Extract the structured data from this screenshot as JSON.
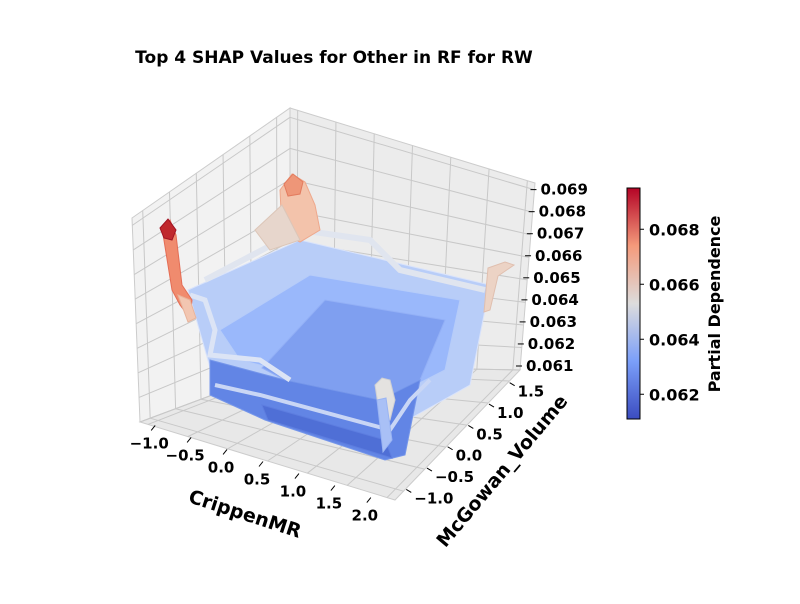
{
  "chart_data": {
    "type": "surface3d",
    "title": "Top 4 SHAP Values for Other in RF for RW",
    "xlabel": "CrippenMR",
    "ylabel": "McGowan_Volume",
    "zlabel": "",
    "x_ticks": [
      "−1.0",
      "−0.5",
      "0.0",
      "0.5",
      "1.0",
      "1.5",
      "2.0"
    ],
    "y_ticks": [
      "−1.0",
      "−0.5",
      "0.0",
      "0.5",
      "1.0",
      "1.5"
    ],
    "z_ticks": [
      "0.061",
      "0.062",
      "0.063",
      "0.064",
      "0.065",
      "0.066",
      "0.067",
      "0.068",
      "0.069"
    ],
    "xlim": [
      -1.1,
      2.1
    ],
    "ylim": [
      -1.2,
      1.75
    ],
    "zlim": [
      0.061,
      0.0693
    ],
    "colormap": "coolwarm",
    "colorbar": {
      "label": "Partial Dependence",
      "ticks": [
        "0.062",
        "0.064",
        "0.066",
        "0.068"
      ],
      "range": [
        0.0611,
        0.0695
      ]
    },
    "surface_summary": {
      "grid_x": [
        -1.0,
        -0.5,
        0.0,
        0.5,
        1.0,
        1.5,
        2.0
      ],
      "grid_y": [
        -1.0,
        -0.5,
        0.0,
        0.5,
        1.0,
        1.5
      ],
      "z": [
        [
          0.0633,
          0.063,
          0.0626,
          0.0626,
          0.063,
          0.064
        ],
        [
          0.0633,
          0.0626,
          0.062,
          0.062,
          0.0626,
          0.0642
        ],
        [
          0.0633,
          0.0624,
          0.0616,
          0.0616,
          0.0622,
          0.0641
        ],
        [
          0.0634,
          0.0624,
          0.0616,
          0.0616,
          0.0622,
          0.0642
        ],
        [
          0.0636,
          0.0626,
          0.0616,
          0.0618,
          0.0624,
          0.0648
        ],
        [
          0.0638,
          0.063,
          0.0624,
          0.0623,
          0.063,
          0.0652
        ],
        [
          0.069,
          0.065,
          0.0645,
          0.0645,
          0.065,
          0.0662
        ]
      ]
    }
  }
}
